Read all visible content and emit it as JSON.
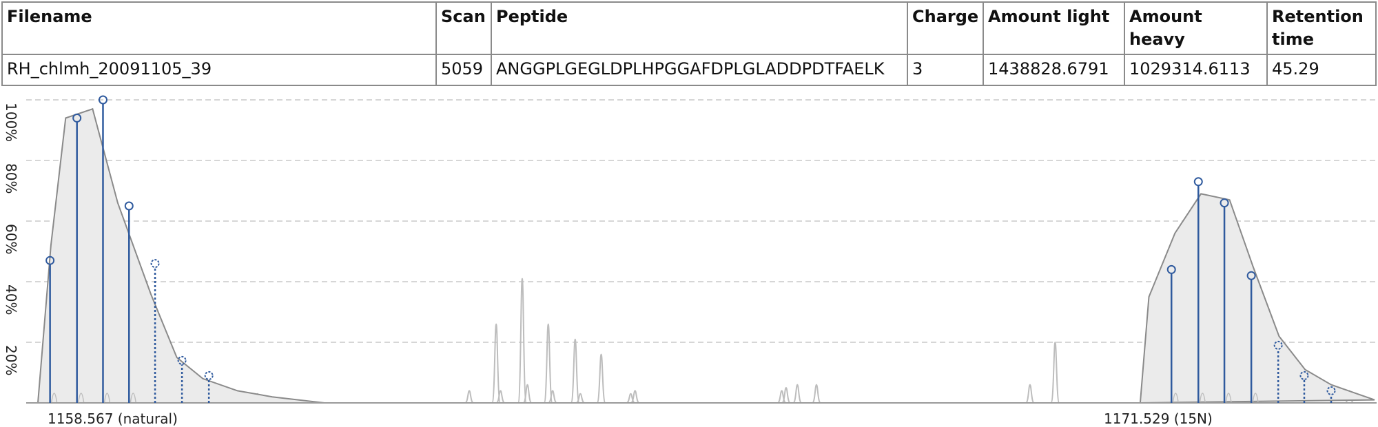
{
  "table": {
    "headers": [
      "Filename",
      "Scan",
      "Peptide",
      "Charge",
      "Amount light",
      "Amount heavy",
      "Retention time"
    ],
    "row": [
      "RH_chlmh_20091105_39",
      "5059",
      "ANGGPLGEGLDPLHPGGAFDPLGLADDPDTFAELK",
      "3",
      "1438828.6791",
      "1029314.6113",
      "45.29"
    ]
  },
  "colors": {
    "isotope": "#2f5a9e",
    "envelope_fill": "#ebebeb",
    "envelope_stroke": "#8a8a8a",
    "background_peaks": "#bdbdbd",
    "grid": "#c8c8c8"
  },
  "chart_data": {
    "type": "line",
    "x_domain": [
      1157.2,
      1172.6
    ],
    "y_range": [
      0,
      100
    ],
    "y_ticks": [
      "20%",
      "40%",
      "60%",
      "80%",
      "100%"
    ],
    "grid": true,
    "peak_labels": [
      "1158.567 (natural)",
      "1171.529 (15N)"
    ],
    "series": [
      {
        "name": "natural",
        "envelope": [
          [
            1157.2,
            0
          ],
          [
            1157.35,
            52
          ],
          [
            1157.52,
            94
          ],
          [
            1157.83,
            97
          ],
          [
            1158.12,
            66
          ],
          [
            1158.5,
            36
          ],
          [
            1158.8,
            15
          ],
          [
            1159.1,
            8
          ],
          [
            1159.5,
            4
          ],
          [
            1159.9,
            2
          ],
          [
            1160.2,
            1
          ],
          [
            1160.5,
            0
          ]
        ],
        "observed": [
          [
            1157.34,
            47
          ],
          [
            1157.65,
            94
          ],
          [
            1157.95,
            100
          ],
          [
            1158.25,
            65
          ]
        ],
        "predicted": [
          [
            1158.55,
            46
          ],
          [
            1158.86,
            14
          ],
          [
            1159.17,
            9
          ]
        ]
      },
      {
        "name": "15N",
        "envelope": [
          [
            1169.9,
            0
          ],
          [
            1170.0,
            35
          ],
          [
            1170.3,
            56
          ],
          [
            1170.6,
            69
          ],
          [
            1170.93,
            67
          ],
          [
            1171.2,
            45
          ],
          [
            1171.5,
            22
          ],
          [
            1171.8,
            11
          ],
          [
            1172.1,
            6
          ],
          [
            1172.4,
            3
          ],
          [
            1172.6,
            1
          ]
        ],
        "observed": [
          [
            1170.26,
            44
          ],
          [
            1170.57,
            73
          ],
          [
            1170.87,
            66
          ],
          [
            1171.18,
            42
          ]
        ],
        "predicted": [
          [
            1171.49,
            19
          ],
          [
            1171.79,
            9
          ],
          [
            1172.1,
            4
          ]
        ]
      }
    ],
    "background_peaks": [
      [
        1159.73,
        3
      ],
      [
        1162.17,
        4
      ],
      [
        1162.48,
        26
      ],
      [
        1162.53,
        4
      ],
      [
        1162.78,
        41
      ],
      [
        1162.84,
        6
      ],
      [
        1163.08,
        26
      ],
      [
        1163.13,
        4
      ],
      [
        1163.39,
        21
      ],
      [
        1163.45,
        3
      ],
      [
        1163.69,
        16
      ],
      [
        1164.03,
        3
      ],
      [
        1164.08,
        4
      ],
      [
        1165.77,
        4
      ],
      [
        1165.82,
        5
      ],
      [
        1165.95,
        6
      ],
      [
        1166.17,
        6
      ],
      [
        1168.63,
        6
      ],
      [
        1168.92,
        20
      ],
      [
        1170.27,
        4
      ],
      [
        1172.31,
        4
      ]
    ]
  }
}
